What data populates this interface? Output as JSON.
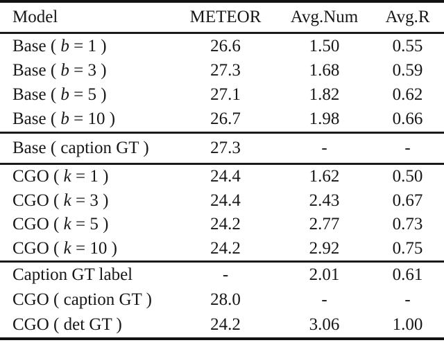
{
  "table": {
    "columns": [
      "Model",
      "METEOR",
      "Avg.Num",
      "Avg.R"
    ],
    "rows": [
      {
        "model_pre": "Base ( ",
        "model_var": "b",
        "model_post": " = 1 )",
        "meteor": "26.6",
        "avg_num": "1.50",
        "avg_r": "0.55"
      },
      {
        "model_pre": "Base ( ",
        "model_var": "b",
        "model_post": " = 3 )",
        "meteor": "27.3",
        "avg_num": "1.68",
        "avg_r": "0.59"
      },
      {
        "model_pre": "Base ( ",
        "model_var": "b",
        "model_post": " = 5 )",
        "meteor": "27.1",
        "avg_num": "1.82",
        "avg_r": "0.62"
      },
      {
        "model_pre": "Base ( ",
        "model_var": "b",
        "model_post": " = 10 )",
        "meteor": "26.7",
        "avg_num": "1.98",
        "avg_r": "0.66"
      },
      {
        "model_pre": "Base ( caption GT )",
        "model_var": "",
        "model_post": "",
        "meteor": "27.3",
        "avg_num": "-",
        "avg_r": "-"
      },
      {
        "model_pre": "CGO ( ",
        "model_var": "k",
        "model_post": " = 1 )",
        "meteor": "24.4",
        "avg_num": "1.62",
        "avg_r": "0.50"
      },
      {
        "model_pre": "CGO ( ",
        "model_var": "k",
        "model_post": " = 3 )",
        "meteor": "24.4",
        "avg_num": "2.43",
        "avg_r": "0.67"
      },
      {
        "model_pre": "CGO ( ",
        "model_var": "k",
        "model_post": " = 5 )",
        "meteor": "24.2",
        "avg_num": "2.77",
        "avg_r": "0.73"
      },
      {
        "model_pre": "CGO ( ",
        "model_var": "k",
        "model_post": " = 10 )",
        "meteor": "24.2",
        "avg_num": "2.92",
        "avg_r": "0.75"
      },
      {
        "model_pre": "Caption GT label",
        "model_var": "",
        "model_post": "",
        "meteor": "-",
        "avg_num": "2.01",
        "avg_r": "0.61"
      },
      {
        "model_pre": "CGO ( caption GT )",
        "model_var": "",
        "model_post": "",
        "meteor": "28.0",
        "avg_num": "-",
        "avg_r": "-"
      },
      {
        "model_pre": "CGO ( det GT )",
        "model_var": "",
        "model_post": "",
        "meteor": "24.2",
        "avg_num": "3.06",
        "avg_r": "1.00"
      }
    ],
    "colors": {
      "text": "#171717",
      "rule": "#1a1a1a",
      "background": "#ffffff"
    }
  }
}
